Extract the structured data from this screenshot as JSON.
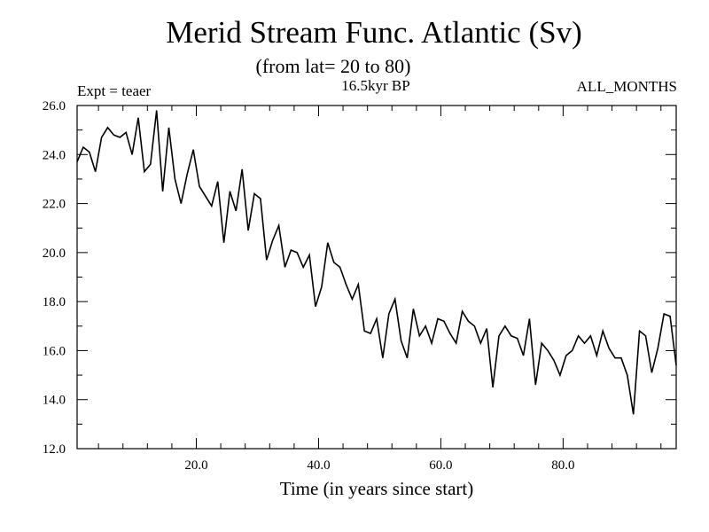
{
  "chart_data": {
    "type": "line",
    "title": "Merid Stream Func. Atlantic (Sv)",
    "subtitle": "(from lat= 20 to 80)",
    "left_label": "Expt = teaer",
    "center_label": "16.5kyr BP",
    "right_label": "ALL_MONTHS",
    "xlabel": "Time (in years since start)",
    "ylabel": "",
    "xlim": [
      0.5,
      98.5
    ],
    "ylim": [
      12.0,
      26.0
    ],
    "x_ticks": [
      20,
      40,
      60,
      80
    ],
    "x_tick_labels": [
      "20.0",
      "40.0",
      "60.0",
      "80.0"
    ],
    "x_minor_step": 4,
    "y_ticks": [
      12,
      14,
      16,
      18,
      20,
      22,
      24,
      26
    ],
    "y_tick_labels": [
      "12.0",
      "14.0",
      "16.0",
      "18.0",
      "20.0",
      "22.0",
      "24.0",
      "26.0"
    ],
    "y_minor_step": 1,
    "grid": false,
    "series": [
      {
        "name": "Merid Stream Func. Atlantic",
        "x": [
          0.5,
          1.5,
          2.5,
          3.5,
          4.5,
          5.5,
          6.5,
          7.5,
          8.5,
          9.5,
          10.5,
          11.5,
          12.5,
          13.5,
          14.5,
          15.5,
          16.5,
          17.5,
          18.5,
          19.5,
          20.5,
          21.5,
          22.5,
          23.5,
          24.5,
          25.5,
          26.5,
          27.5,
          28.5,
          29.5,
          30.5,
          31.5,
          32.5,
          33.5,
          34.5,
          35.5,
          36.5,
          37.5,
          38.5,
          39.5,
          40.5,
          41.5,
          42.5,
          43.5,
          44.5,
          45.5,
          46.5,
          47.5,
          48.5,
          49.5,
          50.5,
          51.5,
          52.5,
          53.5,
          54.5,
          55.5,
          56.5,
          57.5,
          58.5,
          59.5,
          60.5,
          61.5,
          62.5,
          63.5,
          64.5,
          65.5,
          66.5,
          67.5,
          68.5,
          69.5,
          70.5,
          71.5,
          72.5,
          73.5,
          74.5,
          75.5,
          76.5,
          77.5,
          78.5,
          79.5,
          80.5,
          81.5,
          82.5,
          83.5,
          84.5,
          85.5,
          86.5,
          87.5,
          88.5,
          89.5,
          90.5,
          91.5,
          92.5,
          93.5,
          94.5,
          95.5,
          96.5,
          97.5,
          98.5
        ],
        "values": [
          23.7,
          24.3,
          24.1,
          23.3,
          24.7,
          25.1,
          24.8,
          24.7,
          24.9,
          24.0,
          25.5,
          23.3,
          23.6,
          25.8,
          22.5,
          25.1,
          23.0,
          22.0,
          23.2,
          24.2,
          22.7,
          22.3,
          21.9,
          22.9,
          20.4,
          22.5,
          21.7,
          23.4,
          20.9,
          22.4,
          22.2,
          19.7,
          20.5,
          21.1,
          19.4,
          20.1,
          20.0,
          19.4,
          19.9,
          17.8,
          18.6,
          20.4,
          19.6,
          19.4,
          18.7,
          18.1,
          18.7,
          16.8,
          16.7,
          17.3,
          15.7,
          17.5,
          18.1,
          16.4,
          15.7,
          17.7,
          16.6,
          17.0,
          16.3,
          17.3,
          17.2,
          16.7,
          16.3,
          17.6,
          17.2,
          17.0,
          16.3,
          16.9,
          14.5,
          16.6,
          17.0,
          16.6,
          16.5,
          15.8,
          17.3,
          14.6,
          16.3,
          16.0,
          15.6,
          15.0,
          15.8,
          16.0,
          16.6,
          16.3,
          16.6,
          15.8,
          16.8,
          16.1,
          15.7,
          15.7,
          15.0,
          13.4,
          16.8,
          16.6,
          15.1,
          16.1,
          17.5,
          17.4,
          15.4
        ]
      }
    ]
  }
}
